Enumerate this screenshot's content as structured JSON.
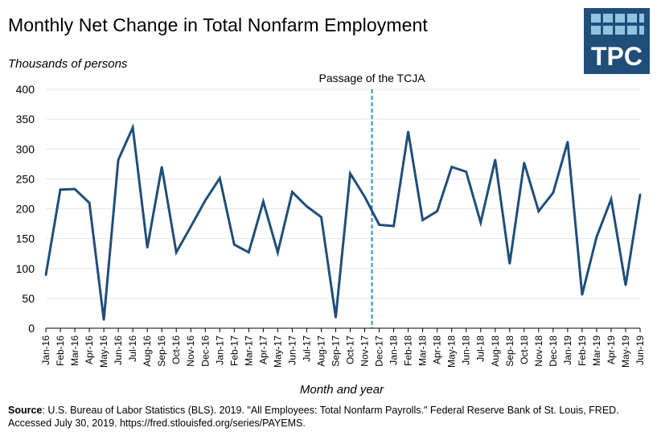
{
  "title": "Monthly Net Change in Total Nonfarm Employment",
  "logo": {
    "text": "TPC",
    "colors": {
      "background": "#1f4e79",
      "tiles": "#8fc4e0",
      "text": "#ffffff"
    }
  },
  "source": {
    "label": "Source",
    "text": ": U.S. Bureau of Labor Statistics (BLS). 2019. \"All Employees: Total Nonfarm Payrolls.\" Federal Reserve Bank of St. Louis, FRED. Accessed July 30, 2019. https://fred.stlouisfed.org/series/PAYEMS."
  },
  "colors": {
    "line": "#1f4e79",
    "annotation_line": "#2f8fbf",
    "grid": "#e6e6e6",
    "axis": "#000000"
  },
  "chart_data": {
    "type": "line",
    "title": "Monthly Net Change in Total Nonfarm Employment",
    "ylabel": "Thousands of persons",
    "xlabel": "Month and year",
    "ylim": [
      0,
      400
    ],
    "yticks": [
      0,
      50,
      100,
      150,
      200,
      250,
      300,
      350,
      400
    ],
    "grid": "horizontal",
    "categories": [
      "Jan-16",
      "Feb-16",
      "Mar-16",
      "Apr-16",
      "May-16",
      "Jun-16",
      "Jul-16",
      "Aug-16",
      "Sep-16",
      "Oct-16",
      "Nov-16",
      "Dec-16",
      "Jan-17",
      "Feb-17",
      "Mar-17",
      "Apr-17",
      "May-17",
      "Jun-17",
      "Jul-17",
      "Aug-17",
      "Sep-17",
      "Oct-17",
      "Nov-17",
      "Dec-17",
      "Jan-18",
      "Feb-18",
      "Mar-18",
      "Apr-18",
      "May-18",
      "Jun-18",
      "Jul-18",
      "Aug-18",
      "Sep-18",
      "Oct-18",
      "Nov-18",
      "Dec-18",
      "Jan-19",
      "Feb-19",
      "Mar-19",
      "Apr-19",
      "May-19",
      "Jun-19"
    ],
    "values": [
      89,
      232,
      233,
      210,
      14,
      282,
      336,
      135,
      270,
      127,
      170,
      214,
      251,
      140,
      127,
      212,
      127,
      228,
      204,
      186,
      18,
      259,
      220,
      173,
      171,
      329,
      181,
      196,
      270,
      262,
      177,
      282,
      108,
      277,
      196,
      227,
      312,
      56,
      153,
      216,
      72,
      224
    ],
    "annotation": {
      "label": "Passage of the TCJA",
      "between": [
        "Nov-17",
        "Dec-17"
      ]
    }
  }
}
